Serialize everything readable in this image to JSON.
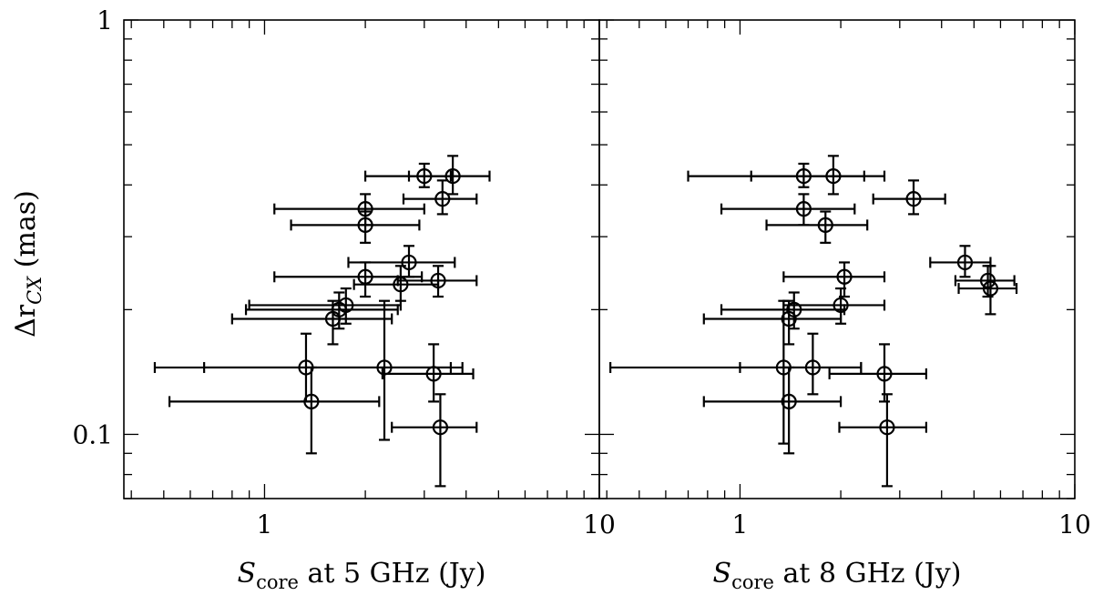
{
  "chart_data": {
    "type": "scatter",
    "ylabel": {
      "main": "Δr",
      "sub": "CX",
      "unit": " (mas)"
    },
    "yscale": "log",
    "ylim": [
      0.07,
      1.0
    ],
    "yticks": [
      {
        "value": 0.1,
        "label": "0.1"
      },
      {
        "value": 1,
        "label": "1"
      }
    ],
    "panels": [
      {
        "xlabel": {
          "main": "S",
          "sub": "core",
          "rest": " at 5 GHz (Jy)"
        },
        "xscale": "log",
        "xlim": [
          0.38,
          10
        ],
        "xticks": [
          {
            "value": 1,
            "label": "1"
          },
          {
            "value": 10,
            "label": "10"
          }
        ],
        "points": [
          {
            "x": 3.0,
            "xlo": 2.0,
            "xhi": 3.6,
            "y": 0.42,
            "ylo": 0.395,
            "yhi": 0.45
          },
          {
            "x": 3.65,
            "xlo": 2.7,
            "xhi": 4.7,
            "y": 0.42,
            "ylo": 0.38,
            "yhi": 0.47
          },
          {
            "x": 3.4,
            "xlo": 2.6,
            "xhi": 4.3,
            "y": 0.37,
            "ylo": 0.34,
            "yhi": 0.41
          },
          {
            "x": 2.0,
            "xlo": 1.07,
            "xhi": 3.0,
            "y": 0.35,
            "ylo": 0.32,
            "yhi": 0.38
          },
          {
            "x": 2.0,
            "xlo": 1.2,
            "xhi": 2.9,
            "y": 0.32,
            "ylo": 0.29,
            "yhi": 0.345
          },
          {
            "x": 2.7,
            "xlo": 1.78,
            "xhi": 3.7,
            "y": 0.26,
            "ylo": 0.24,
            "yhi": 0.285
          },
          {
            "x": 2.0,
            "xlo": 1.07,
            "xhi": 2.95,
            "y": 0.24,
            "ylo": 0.215,
            "yhi": 0.26
          },
          {
            "x": 2.55,
            "xlo": 1.85,
            "xhi": 3.3,
            "y": 0.23,
            "ylo": 0.21,
            "yhi": 0.255
          },
          {
            "x": 3.3,
            "xlo": 2.5,
            "xhi": 4.3,
            "y": 0.235,
            "ylo": 0.215,
            "yhi": 0.255
          },
          {
            "x": 1.75,
            "xlo": 0.9,
            "xhi": 2.55,
            "y": 0.205,
            "ylo": 0.185,
            "yhi": 0.225
          },
          {
            "x": 1.67,
            "xlo": 0.88,
            "xhi": 2.5,
            "y": 0.2,
            "ylo": 0.18,
            "yhi": 0.22
          },
          {
            "x": 1.6,
            "xlo": 0.8,
            "xhi": 2.4,
            "y": 0.19,
            "ylo": 0.165,
            "yhi": 0.21
          },
          {
            "x": 1.33,
            "xlo": 0.47,
            "xhi": 3.6,
            "y": 0.145,
            "ylo": 0.12,
            "yhi": 0.175
          },
          {
            "x": 2.28,
            "xlo": 0.66,
            "xhi": 3.9,
            "y": 0.145,
            "ylo": 0.097,
            "yhi": 0.21
          },
          {
            "x": 3.2,
            "xlo": 2.25,
            "xhi": 4.2,
            "y": 0.14,
            "ylo": 0.12,
            "yhi": 0.165
          },
          {
            "x": 1.38,
            "xlo": 0.52,
            "xhi": 2.2,
            "y": 0.12,
            "ylo": 0.09,
            "yhi": 0.145
          },
          {
            "x": 3.35,
            "xlo": 2.4,
            "xhi": 4.3,
            "y": 0.104,
            "ylo": 0.075,
            "yhi": 0.125
          }
        ]
      },
      {
        "xlabel": {
          "main": "S",
          "sub": "core",
          "rest": " at 8 GHz (Jy)"
        },
        "xscale": "log",
        "xlim": [
          0.38,
          10
        ],
        "xticks": [
          {
            "value": 1,
            "label": "1"
          },
          {
            "value": 10,
            "label": "10"
          }
        ],
        "points": [
          {
            "x": 1.55,
            "xlo": 0.7,
            "xhi": 2.35,
            "y": 0.42,
            "ylo": 0.395,
            "yhi": 0.45
          },
          {
            "x": 1.9,
            "xlo": 1.08,
            "xhi": 2.7,
            "y": 0.42,
            "ylo": 0.38,
            "yhi": 0.47
          },
          {
            "x": 3.3,
            "xlo": 2.5,
            "xhi": 4.1,
            "y": 0.37,
            "ylo": 0.34,
            "yhi": 0.41
          },
          {
            "x": 1.55,
            "xlo": 0.88,
            "xhi": 2.2,
            "y": 0.35,
            "ylo": 0.32,
            "yhi": 0.38
          },
          {
            "x": 1.8,
            "xlo": 1.2,
            "xhi": 2.4,
            "y": 0.32,
            "ylo": 0.29,
            "yhi": 0.345
          },
          {
            "x": 4.7,
            "xlo": 3.7,
            "xhi": 5.6,
            "y": 0.26,
            "ylo": 0.24,
            "yhi": 0.285
          },
          {
            "x": 2.05,
            "xlo": 1.35,
            "xhi": 2.7,
            "y": 0.24,
            "ylo": 0.215,
            "yhi": 0.26
          },
          {
            "x": 5.5,
            "xlo": 4.4,
            "xhi": 6.6,
            "y": 0.235,
            "ylo": 0.215,
            "yhi": 0.255
          },
          {
            "x": 5.6,
            "xlo": 4.5,
            "xhi": 6.7,
            "y": 0.225,
            "ylo": 0.195,
            "yhi": 0.255
          },
          {
            "x": 2.0,
            "xlo": 1.35,
            "xhi": 2.7,
            "y": 0.205,
            "ylo": 0.185,
            "yhi": 0.225
          },
          {
            "x": 1.45,
            "xlo": 0.88,
            "xhi": 2.05,
            "y": 0.2,
            "ylo": 0.18,
            "yhi": 0.22
          },
          {
            "x": 1.4,
            "xlo": 0.78,
            "xhi": 2.0,
            "y": 0.19,
            "ylo": 0.165,
            "yhi": 0.21
          },
          {
            "x": 1.35,
            "xlo": 0.41,
            "xhi": 2.3,
            "y": 0.145,
            "ylo": 0.095,
            "yhi": 0.21
          },
          {
            "x": 1.65,
            "xlo": 1.0,
            "xhi": 2.3,
            "y": 0.145,
            "ylo": 0.125,
            "yhi": 0.175
          },
          {
            "x": 2.7,
            "xlo": 1.85,
            "xhi": 3.6,
            "y": 0.14,
            "ylo": 0.12,
            "yhi": 0.165
          },
          {
            "x": 1.4,
            "xlo": 0.78,
            "xhi": 2.0,
            "y": 0.12,
            "ylo": 0.09,
            "yhi": 0.145
          },
          {
            "x": 2.75,
            "xlo": 1.98,
            "xhi": 3.6,
            "y": 0.104,
            "ylo": 0.075,
            "yhi": 0.125
          }
        ]
      }
    ]
  }
}
